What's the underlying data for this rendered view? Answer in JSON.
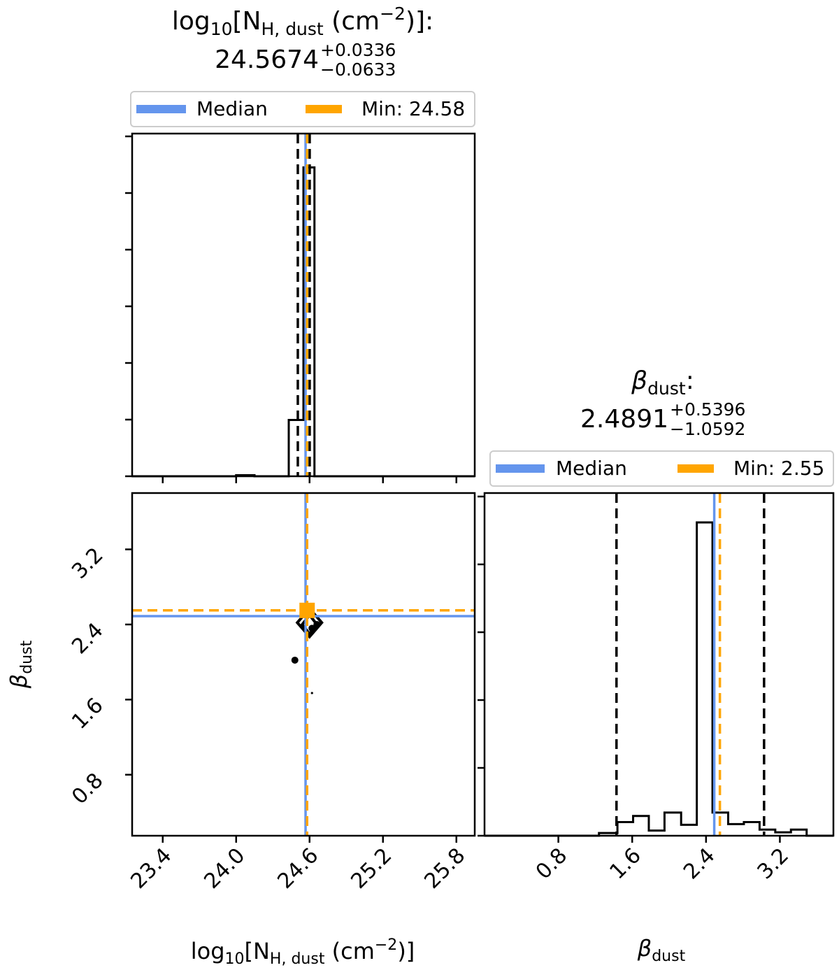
{
  "colors": {
    "median": "#6495ED",
    "min": "#FFA500",
    "quantile": "#000000",
    "frame": "#000000",
    "legend_border": "#cccccc"
  },
  "panels": {
    "nh_hist": {
      "title_param": "log₁₀[N_H, dust (cm⁻²)]:",
      "title_value": "24.5674",
      "title_upper": "+0.0336",
      "title_lower": "−0.0633",
      "legend": {
        "median_label": "Median",
        "min_label": "Min: 24.58"
      }
    },
    "beta_hist": {
      "title_param": "β_dust:",
      "title_value": "2.4891",
      "title_upper": "+0.5396",
      "title_lower": "−1.0592",
      "legend": {
        "median_label": "Median",
        "min_label": "Min: 2.55"
      }
    },
    "axes": {
      "x_nh_label": "log₁₀[N_H, dust (cm⁻²)]",
      "x_beta_label": "β_dust",
      "y_beta_label": "β_dust",
      "x_nh_ticks": [
        "23.4",
        "24.0",
        "24.6",
        "25.2",
        "25.8"
      ],
      "beta_ticks": [
        "0.8",
        "1.6",
        "2.4",
        "3.2"
      ]
    }
  },
  "chart_data": [
    {
      "type": "histogram",
      "parameter": "log10 N_H,dust",
      "xlim": [
        23.15,
        25.95
      ],
      "ylim": [
        0,
        1.0
      ],
      "bins": [
        {
          "x0": 23.15,
          "x1": 24.0,
          "y": 0.0
        },
        {
          "x0": 24.0,
          "x1": 24.15,
          "y": 0.003
        },
        {
          "x0": 24.15,
          "x1": 24.43,
          "y": 0.0
        },
        {
          "x0": 24.43,
          "x1": 24.55,
          "y": 0.165
        },
        {
          "x0": 24.55,
          "x1": 24.64,
          "y": 0.905
        },
        {
          "x0": 24.64,
          "x1": 25.95,
          "y": 0.0
        }
      ],
      "median": 24.5674,
      "min": 24.58,
      "quantiles": [
        24.5041,
        24.601
      ]
    },
    {
      "type": "histogram",
      "parameter": "beta_dust",
      "xlim": [
        0.0,
        3.78
      ],
      "ylim": [
        0,
        1.0
      ],
      "bins": [
        {
          "x0": 0.0,
          "x1": 1.24,
          "y": 0.0
        },
        {
          "x0": 1.24,
          "x1": 1.44,
          "y": 0.008
        },
        {
          "x0": 1.44,
          "x1": 1.61,
          "y": 0.04
        },
        {
          "x0": 1.61,
          "x1": 1.78,
          "y": 0.058
        },
        {
          "x0": 1.78,
          "x1": 1.95,
          "y": 0.015
        },
        {
          "x0": 1.95,
          "x1": 2.13,
          "y": 0.068
        },
        {
          "x0": 2.13,
          "x1": 2.3,
          "y": 0.032
        },
        {
          "x0": 2.3,
          "x1": 2.47,
          "y": 0.918
        },
        {
          "x0": 2.47,
          "x1": 2.64,
          "y": 0.068
        },
        {
          "x0": 2.64,
          "x1": 2.81,
          "y": 0.034
        },
        {
          "x0": 2.81,
          "x1": 2.98,
          "y": 0.04
        },
        {
          "x0": 2.98,
          "x1": 3.15,
          "y": 0.018
        },
        {
          "x0": 3.15,
          "x1": 3.32,
          "y": 0.01
        },
        {
          "x0": 3.32,
          "x1": 3.49,
          "y": 0.018
        },
        {
          "x0": 3.49,
          "x1": 3.78,
          "y": 0.0
        }
      ],
      "median": 2.4891,
      "min": 2.55,
      "quantiles": [
        1.4299,
        3.0287
      ]
    },
    {
      "type": "scatter",
      "x_parameter": "log10 N_H,dust",
      "y_parameter": "beta_dust",
      "xlim": [
        23.15,
        25.95
      ],
      "ylim": [
        0.15,
        3.8
      ],
      "contours": [
        {
          "points": [
            [
              24.5,
              2.42
            ],
            [
              24.6,
              2.27
            ],
            [
              24.7,
              2.42
            ],
            [
              24.6,
              2.57
            ]
          ]
        },
        {
          "points": [
            [
              24.54,
              2.4
            ],
            [
              24.6,
              2.3
            ],
            [
              24.66,
              2.4
            ],
            [
              24.6,
              2.5
            ]
          ]
        }
      ],
      "filled_points": [
        {
          "x": 24.62,
          "y": 2.36
        },
        {
          "x": 24.66,
          "y": 2.4
        },
        {
          "x": 24.48,
          "y": 2.02
        },
        {
          "x": 24.62,
          "y": 1.67
        }
      ],
      "median": {
        "x": 24.5674,
        "y": 2.4891
      },
      "min": {
        "x": 24.58,
        "y": 2.55
      }
    }
  ]
}
